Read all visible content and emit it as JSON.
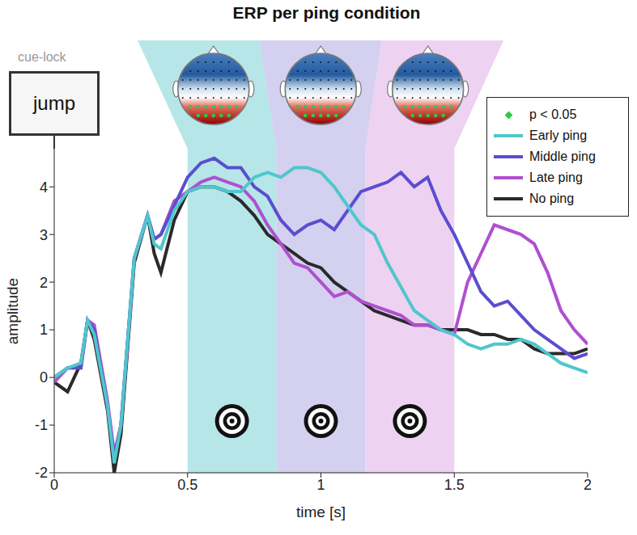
{
  "chart_data": {
    "type": "line",
    "title": "ERP per ping condition",
    "x_label": "time [s]",
    "y_label": "amplitude",
    "x": [
      0,
      0.05,
      0.1,
      0.125,
      0.15,
      0.2,
      0.225,
      0.25,
      0.3,
      0.35,
      0.375,
      0.4,
      0.45,
      0.5,
      0.55,
      0.6,
      0.65,
      0.7,
      0.75,
      0.8,
      0.85,
      0.9,
      0.95,
      1.0,
      1.05,
      1.1,
      1.15,
      1.2,
      1.25,
      1.3,
      1.35,
      1.4,
      1.45,
      1.5,
      1.55,
      1.6,
      1.65,
      1.7,
      1.75,
      1.8,
      1.85,
      1.9,
      1.95,
      2.0
    ],
    "series": [
      {
        "name": "Early ping",
        "color": "#4fc6cc",
        "values": [
          0.0,
          0.2,
          0.3,
          1.2,
          0.9,
          -0.6,
          -1.8,
          -1.0,
          2.5,
          3.4,
          2.8,
          2.7,
          3.5,
          3.9,
          4.0,
          4.0,
          3.9,
          3.9,
          4.2,
          4.3,
          4.2,
          4.4,
          4.4,
          4.3,
          4.0,
          3.6,
          3.2,
          3.0,
          2.4,
          1.9,
          1.4,
          1.2,
          1.0,
          0.9,
          0.7,
          0.6,
          0.7,
          0.7,
          0.8,
          0.7,
          0.5,
          0.3,
          0.2,
          0.1
        ]
      },
      {
        "name": "Middle ping",
        "color": "#5a4ecf",
        "values": [
          0.0,
          0.2,
          0.2,
          1.2,
          1.0,
          -0.6,
          -1.7,
          -1.0,
          2.5,
          3.4,
          2.9,
          3.0,
          3.6,
          4.2,
          4.5,
          4.6,
          4.4,
          4.4,
          4.0,
          3.8,
          3.3,
          3.0,
          3.2,
          3.3,
          3.1,
          3.5,
          3.9,
          4.0,
          4.1,
          4.3,
          4.0,
          4.2,
          3.5,
          3.0,
          2.4,
          1.8,
          1.5,
          1.6,
          1.3,
          1.0,
          0.8,
          0.6,
          0.4,
          0.5
        ]
      },
      {
        "name": "Late ping",
        "color": "#b04fd0",
        "values": [
          -0.1,
          0.2,
          0.2,
          1.2,
          1.1,
          -0.5,
          -1.6,
          -1.0,
          2.5,
          3.4,
          2.9,
          3.0,
          3.7,
          3.9,
          4.1,
          4.2,
          4.1,
          4.0,
          3.7,
          3.2,
          2.8,
          2.4,
          2.3,
          2.0,
          1.7,
          1.8,
          1.6,
          1.5,
          1.4,
          1.3,
          1.1,
          1.1,
          1.0,
          0.9,
          2.0,
          2.6,
          3.2,
          3.1,
          3.0,
          2.8,
          2.2,
          1.4,
          1.0,
          0.7
        ]
      },
      {
        "name": "No ping",
        "color": "#2a2a2a",
        "values": [
          -0.1,
          -0.3,
          0.3,
          1.2,
          0.8,
          -0.7,
          -2.0,
          -1.2,
          2.4,
          3.4,
          2.6,
          2.2,
          3.3,
          3.9,
          4.0,
          4.0,
          3.9,
          3.7,
          3.4,
          3.0,
          2.8,
          2.6,
          2.4,
          2.3,
          2.0,
          1.8,
          1.6,
          1.4,
          1.3,
          1.2,
          1.1,
          1.1,
          1.0,
          1.0,
          1.0,
          0.9,
          0.9,
          0.8,
          0.8,
          0.6,
          0.5,
          0.5,
          0.5,
          0.6
        ]
      }
    ],
    "xlim": [
      0,
      2
    ],
    "xticks": [
      0,
      0.5,
      1,
      1.5,
      2
    ],
    "ylim": [
      -2,
      4.8
    ],
    "yticks": [
      -2,
      -1,
      0,
      1,
      2,
      3,
      4
    ],
    "legend": "upper right",
    "ping_windows": [
      {
        "start": 0.5,
        "end": 0.833,
        "color": "#9fdde0"
      },
      {
        "start": 0.833,
        "end": 1.167,
        "color": "#c6c0ea"
      },
      {
        "start": 1.167,
        "end": 1.5,
        "color": "#e8c3ec"
      }
    ],
    "annotations": {
      "cue_label": "cue-lock",
      "cue_word": "jump",
      "significance_label": "p < 0.05",
      "significance_color": "#2ecc40"
    }
  }
}
